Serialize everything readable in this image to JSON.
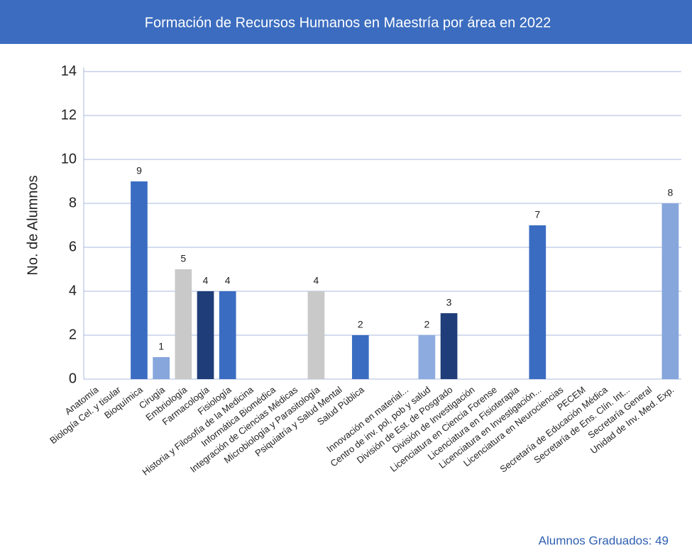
{
  "chart_data": {
    "type": "bar",
    "title": "Formación de Recursos Humanos en Maestría por área en 2022",
    "y_label": "No. de Alumnos",
    "footer": "Alumnos Graduados: 49",
    "categories": [
      "Anatomía",
      "Biología Cel. y tisular",
      "Bioquímica",
      "Cirugía",
      "Embriología",
      "Farmacología",
      "Fisiología",
      "Historia y Filosofía de la Medicina",
      "Informática Biomédica",
      "Integración de Ciencias Médicas",
      "Microbiología y Parasitología",
      "Psiquiatría y Salud Mental",
      "Salud Pública",
      null,
      "Innovación en material...",
      "Centro de inv. pol, pob y salud",
      "División de Est. de Posgrado",
      "División de Investigación",
      "Licenciatura en Ciencia Forense",
      "Licenciatura en Fisioterapia",
      "Licenciatura en Investigación...",
      "Licenciatura en Neurociencias",
      "PECEM",
      "Secretaría de Educación Médica",
      "Secretaría de Ens. Clín. Int...",
      "Secretaría General",
      "Unidad de Inv. Med. Exp."
    ],
    "values": [
      null,
      null,
      9,
      1,
      5,
      4,
      4,
      null,
      null,
      null,
      4,
      null,
      2,
      null,
      null,
      2,
      3,
      null,
      null,
      null,
      7,
      null,
      null,
      null,
      null,
      null,
      8
    ],
    "colors": [
      null,
      null,
      "#3a6dc2",
      "#86a6dc",
      "#c9c9c9",
      "#1f3d78",
      "#3a6dc2",
      null,
      null,
      null,
      "#c9c9c9",
      null,
      "#3a6dc2",
      null,
      null,
      "#8eabe0",
      "#1f3d78",
      null,
      null,
      null,
      "#3a6dc2",
      null,
      null,
      null,
      null,
      null,
      "#86a6dc"
    ],
    "ylim": [
      0,
      14
    ],
    "yticks": [
      0,
      2,
      4,
      6,
      8,
      10,
      12,
      14
    ],
    "grid": true
  }
}
